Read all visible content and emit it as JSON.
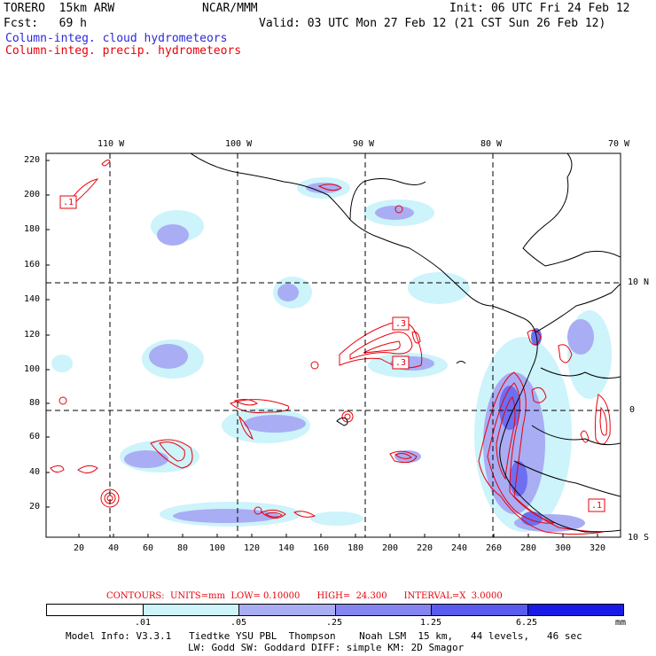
{
  "header": {
    "model": "TORERO  15km ARW",
    "org": "NCAR/MMM",
    "init": "Init: 06 UTC Fri 24 Feb 12",
    "fcst": "Fcst:   69 h",
    "valid": "Valid: 03 UTC Mon 27 Feb 12 (21 CST Sun 26 Feb 12)",
    "legend_cloud": "Column-integ. cloud hydrometeors",
    "legend_precip": "Column-integ. precip. hydrometeors"
  },
  "map": {
    "top_lon_labels": [
      "110 W",
      "100 W",
      "90 W",
      "80 W",
      "70 W"
    ],
    "right_lat_labels": [
      "10 N",
      "0",
      "10 S"
    ],
    "left_y_ticks": [
      "220",
      "200",
      "180",
      "160",
      "140",
      "120",
      "100",
      "80",
      "60",
      "40",
      "20"
    ],
    "bottom_x_ticks": [
      "20",
      "40",
      "60",
      "80",
      "100",
      "120",
      "140",
      "160",
      "180",
      "200",
      "220",
      "240",
      "260",
      "280",
      "300",
      "320"
    ],
    "contour_labels": [
      ".1",
      ".3",
      ".3",
      ".1"
    ],
    "colors": {
      "cloud_light": "#cdf3fb",
      "cloud_mid": "#a9adf4",
      "cloud_dark": "#6e6ef0",
      "precip_contour": "#e8000b",
      "border": "#000000"
    }
  },
  "contours_info": "CONTOURS:  UNITS=mm  LOW= 0.10000      HIGH=  24.300      INTERVAL=X  3.0000",
  "color_bar": {
    "labels": [
      ".01",
      ".05",
      ".25",
      "1.25",
      "6.25"
    ],
    "unit": "mm",
    "colors": [
      "#ffffff",
      "#cdf3fb",
      "#a9adf4",
      "#8585f2",
      "#5a5aee",
      "#1a1ae8"
    ]
  },
  "footer": {
    "line1": "Model Info: V3.3.1   Tiedtke YSU PBL  Thompson    Noah LSM  15 km,   44 levels,   46 sec",
    "line2": "LW: Godd SW: Goddard DIFF: simple KM: 2D Smagor"
  }
}
